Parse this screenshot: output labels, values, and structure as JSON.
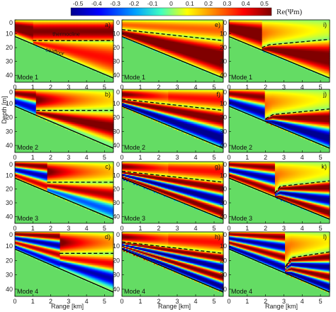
{
  "chart_data": {
    "type": "heatmap",
    "colorbar": {
      "title": "Re(Ψm)",
      "ticks": [
        "-0.5",
        "-0.4",
        "-0.3",
        "-0.2",
        "-0.1",
        "0",
        "0.1",
        "0.2",
        "0.3",
        "0.4",
        "0.5"
      ],
      "range": [
        -0.5,
        0.5
      ],
      "colormap": [
        "#00008f",
        "#0000ff",
        "#00a0ff",
        "#40ffc0",
        "#ffff00",
        "#ff8000",
        "#ff0000",
        "#800000"
      ]
    },
    "xlabel": "Range [km]",
    "ylabel": "Depth [m]",
    "xlim": [
      0,
      5.5
    ],
    "ylim": [
      45,
      0
    ],
    "xticks": [
      "0",
      "1",
      "2",
      "3",
      "4",
      "5"
    ],
    "yticks": [
      "0",
      "10",
      "20",
      "30",
      "40"
    ],
    "annotations": {
      "thermocline": "thermocline",
      "seafloor": "seafloor"
    },
    "seafloor": {
      "x": [
        0,
        5.5
      ],
      "depth": [
        12,
        42
      ]
    },
    "panels": [
      {
        "letter": "a)",
        "mode_label": "Mode 1",
        "mode": 1,
        "variant": "a",
        "thermocline": {
          "x": [
            1.0,
            5.5
          ],
          "depth": [
            15,
            15
          ]
        }
      },
      {
        "letter": "e)",
        "mode_label": "Mode 1",
        "mode": 1,
        "variant": "e",
        "thermocline": {
          "x": [
            0,
            5.5
          ],
          "depth": [
            7,
            15
          ]
        }
      },
      {
        "letter": "i)",
        "mode_label": "Mode 1",
        "mode": 1,
        "variant": "i",
        "thermocline": {
          "x": [
            1.8,
            2.2,
            5.5
          ],
          "depth": [
            20,
            18,
            14
          ]
        }
      },
      {
        "letter": "b)",
        "mode_label": "Mode 2",
        "mode": 2,
        "variant": "a",
        "thermocline": {
          "x": [
            1.2,
            5.5
          ],
          "depth": [
            15,
            15
          ]
        }
      },
      {
        "letter": "f)",
        "mode_label": "Mode 2",
        "mode": 2,
        "variant": "e",
        "thermocline": {
          "x": [
            0,
            5.5
          ],
          "depth": [
            7,
            15
          ]
        }
      },
      {
        "letter": "j)",
        "mode_label": "Mode 2",
        "mode": 2,
        "variant": "i",
        "thermocline": {
          "x": [
            2.0,
            2.4,
            5.5
          ],
          "depth": [
            21,
            18,
            14
          ]
        }
      },
      {
        "letter": "c)",
        "mode_label": "Mode 3",
        "mode": 3,
        "variant": "a",
        "thermocline": {
          "x": [
            1.8,
            5.5
          ],
          "depth": [
            15,
            15
          ]
        }
      },
      {
        "letter": "g)",
        "mode_label": "Mode 3",
        "mode": 3,
        "variant": "e",
        "thermocline": {
          "x": [
            0,
            5.5
          ],
          "depth": [
            7,
            15
          ]
        }
      },
      {
        "letter": "k)",
        "mode_label": "Mode 3",
        "mode": 3,
        "variant": "i",
        "thermocline": {
          "x": [
            2.5,
            2.8,
            5.5
          ],
          "depth": [
            23,
            18,
            14
          ]
        }
      },
      {
        "letter": "d)",
        "mode_label": "Mode 4",
        "mode": 4,
        "variant": "a",
        "thermocline": {
          "x": [
            2.5,
            5.5
          ],
          "depth": [
            15,
            15
          ]
        }
      },
      {
        "letter": "h)",
        "mode_label": "Mode 4",
        "mode": 4,
        "variant": "e",
        "thermocline": {
          "x": [
            0,
            5.5
          ],
          "depth": [
            7,
            15
          ]
        }
      },
      {
        "letter": "l)",
        "mode_label": "Mode 4",
        "mode": 4,
        "variant": "i",
        "thermocline": {
          "x": [
            3.1,
            3.4,
            5.5
          ],
          "depth": [
            24,
            18,
            14
          ]
        }
      }
    ]
  }
}
